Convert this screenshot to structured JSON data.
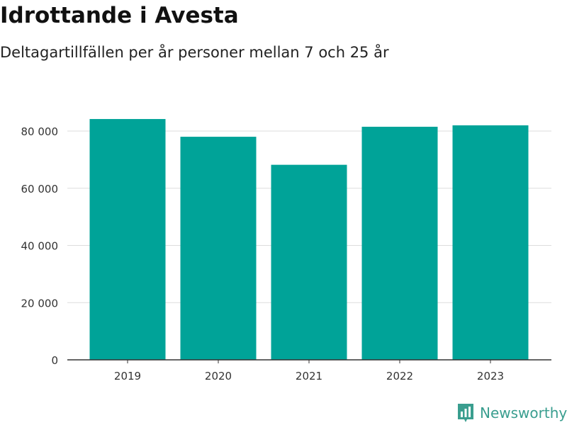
{
  "header": {
    "title": "Idrottande i Avesta",
    "subtitle": "Deltagartillfällen per år personer mellan 7 och 25 år"
  },
  "brand": {
    "name": "Newsworthy",
    "icon": "newsworthy-logo-icon",
    "color": "#3a9e8f"
  },
  "chart_data": {
    "type": "bar",
    "title": "Idrottande i Avesta",
    "subtitle": "Deltagartillfällen per år personer mellan 7 och 25 år",
    "categories": [
      "2019",
      "2020",
      "2021",
      "2022",
      "2023"
    ],
    "series": [
      {
        "values": [
          84200,
          78000,
          68200,
          81500,
          82000
        ],
        "color": "#00a398"
      }
    ],
    "xlabel": "",
    "ylabel": "",
    "ylim": [
      0,
      80000
    ],
    "yticks": [
      0,
      20000,
      40000,
      60000,
      80000
    ],
    "ytick_labels": [
      "0",
      "20 000",
      "40 000",
      "60 000",
      "80 000"
    ],
    "grid": true,
    "legend": "none"
  }
}
